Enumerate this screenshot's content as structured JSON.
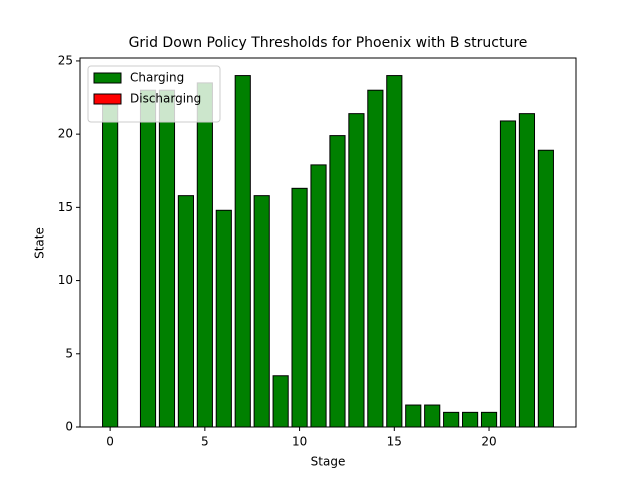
{
  "chart_data": {
    "type": "bar",
    "title": "Grid Down Policy Thresholds for Phoenix with B structure",
    "xlabel": "Stage",
    "ylabel": "State",
    "x": [
      0,
      1,
      2,
      3,
      4,
      5,
      6,
      7,
      8,
      9,
      10,
      11,
      12,
      13,
      14,
      15,
      16,
      17,
      18,
      19,
      20,
      21,
      22,
      23
    ],
    "series": [
      {
        "name": "Charging",
        "color": "#008000",
        "values": [
          22,
          0,
          23,
          23,
          15.8,
          23.5,
          14.8,
          24,
          15.8,
          3.5,
          16.3,
          17.9,
          19.9,
          21.4,
          23,
          24,
          1.5,
          1.5,
          1,
          1,
          1,
          20.9,
          21.4,
          18.9
        ]
      },
      {
        "name": "Discharging",
        "color": "#ff0000",
        "values": [
          0,
          0,
          0,
          0,
          0,
          0,
          0,
          0,
          0,
          0,
          0,
          0,
          0,
          0,
          0,
          0,
          0,
          0,
          0,
          0,
          0,
          0,
          0,
          0
        ]
      }
    ],
    "xlim": [
      -1.59,
      24.59
    ],
    "xticks": [
      0,
      5,
      10,
      15,
      20
    ],
    "ylim": [
      0,
      25.2
    ],
    "yticks": [
      0,
      5,
      10,
      15,
      20,
      25
    ],
    "legend": "upper left"
  }
}
